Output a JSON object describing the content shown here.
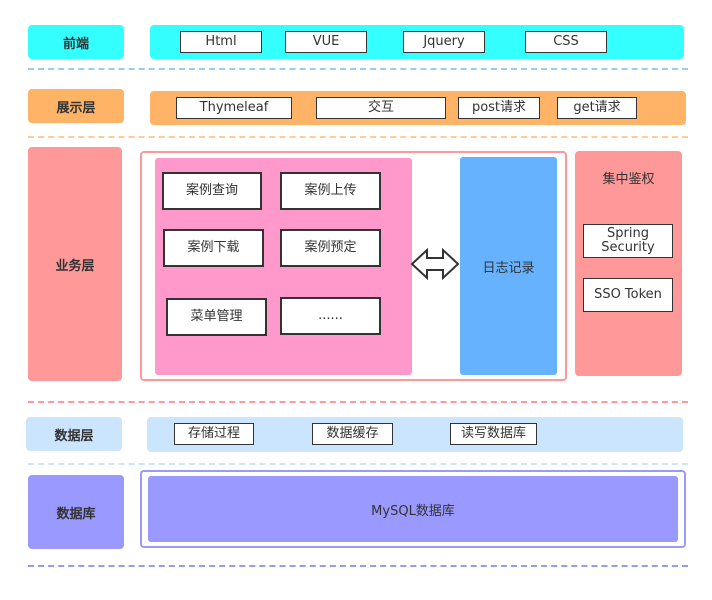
{
  "layers": {
    "frontend": {
      "label": "前端",
      "items": [
        "Html",
        "VUE",
        "Jquery",
        "CSS"
      ],
      "color": "#33FFFF"
    },
    "presentation": {
      "label": "展示层",
      "items": [
        "Thymeleaf",
        "交互",
        "post请求",
        "get请求"
      ],
      "color": "#FFB366"
    },
    "business": {
      "label": "业务层",
      "modules": [
        "案例查询",
        "案例上传",
        "案例下载",
        "案例预定",
        "菜单管理",
        "......"
      ],
      "log": "日志记录",
      "auth": {
        "title": "集中鉴权",
        "items": [
          "Spring Security",
          "SSO Token"
        ]
      },
      "color": "#FF9999",
      "module_color": "#FF99CC",
      "log_color": "#66B2FF"
    },
    "data": {
      "label": "数据层",
      "items": [
        "存储过程",
        "数据缓存",
        "读写数据库"
      ],
      "color": "#CCE5FF"
    },
    "database": {
      "label": "数据库",
      "main": "MySQL数据库",
      "color": "#9999FF"
    }
  }
}
